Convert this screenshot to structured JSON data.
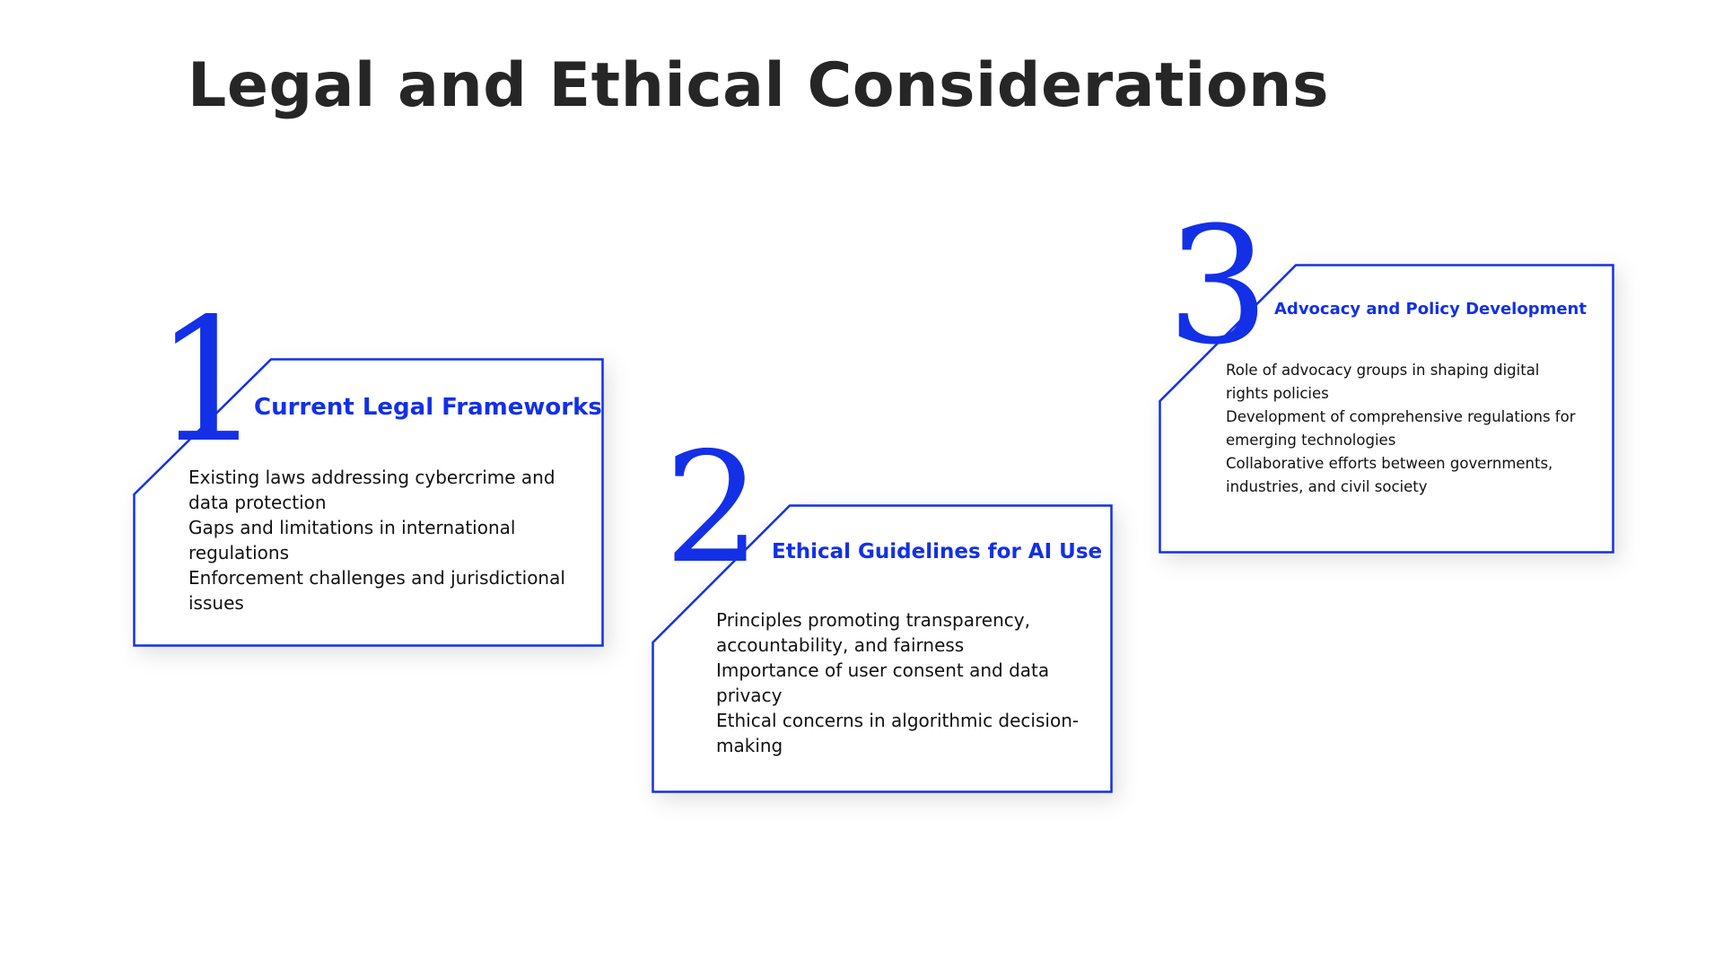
{
  "slide": {
    "title": "Legal and Ethical Considerations"
  },
  "colors": {
    "accent": "#1330e6",
    "title": "#262626",
    "body_text": "#111111",
    "background": "#ffffff"
  },
  "steps": [
    {
      "number": "1",
      "heading": "Current Legal Frameworks",
      "points": [
        "Existing laws addressing cybercrime and data protection",
        "Gaps and limitations in international regulations",
        "Enforcement challenges and jurisdictional issues"
      ]
    },
    {
      "number": "2",
      "heading": "Ethical Guidelines for AI Use",
      "points": [
        "Principles promoting transparency, accountability, and fairness",
        "Importance of user consent and data privacy",
        "Ethical concerns in algorithmic decision-making"
      ]
    },
    {
      "number": "3",
      "heading": "Advocacy and Policy Development",
      "points": [
        "Role of advocacy groups in shaping digital rights policies",
        "Development of comprehensive regulations for emerging technologies",
        "Collaborative efforts between governments, industries, and civil society"
      ]
    }
  ]
}
